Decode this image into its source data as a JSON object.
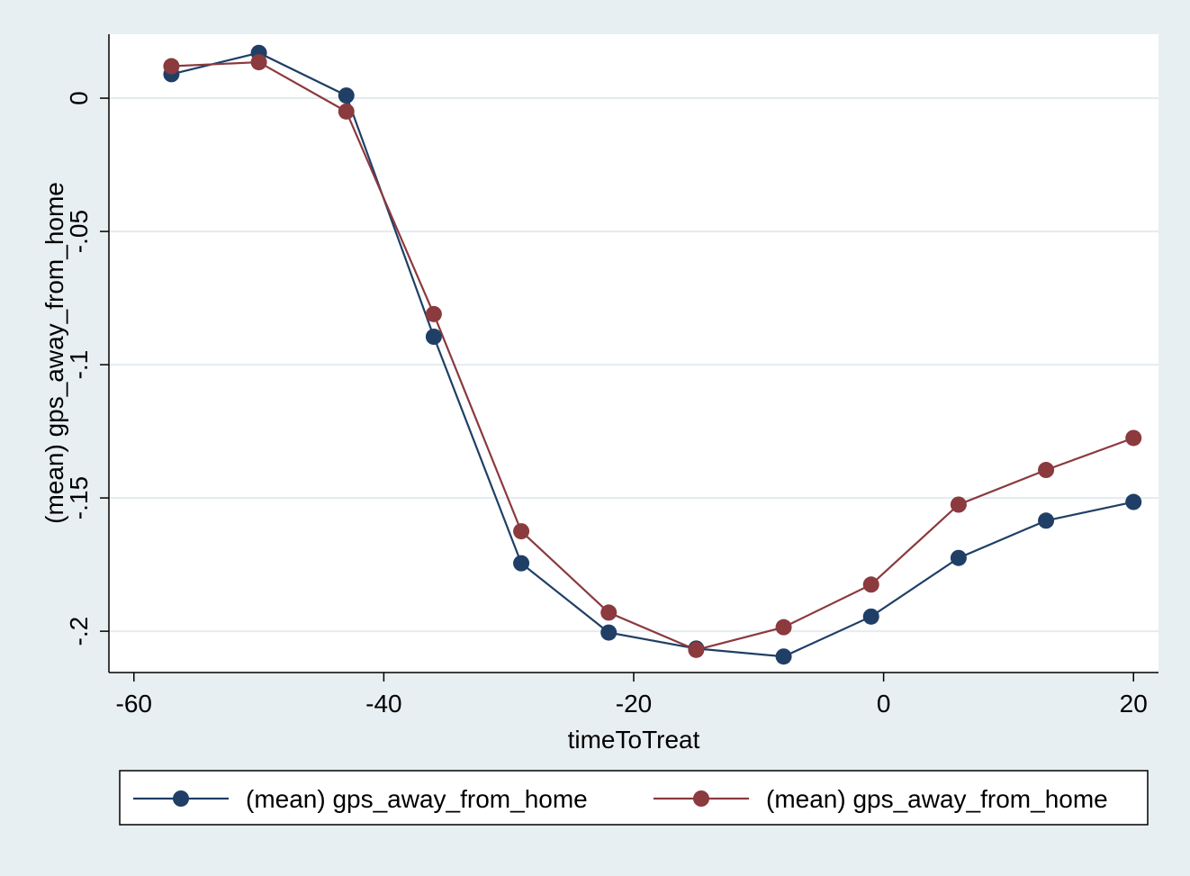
{
  "chart_data": {
    "type": "line",
    "title": "",
    "xlabel": "timeToTreat",
    "ylabel": "(mean) gps_away_from_home",
    "xlim": [
      -62,
      22
    ],
    "ylim": [
      -0.2155,
      0.024
    ],
    "x_ticks": [
      -60,
      -40,
      -20,
      0,
      20
    ],
    "x_tick_labels": [
      "-60",
      "-40",
      "-20",
      "0",
      "20"
    ],
    "y_ticks": [
      0,
      -0.05,
      -0.1,
      -0.15,
      -0.2
    ],
    "y_tick_labels": [
      "0",
      "-.05",
      "-.1",
      "-.15",
      "-.2"
    ],
    "grid": "horizontal",
    "legend_position": "bottom",
    "x": [
      -57,
      -50,
      -43,
      -36,
      -29,
      -22,
      -15,
      -8,
      -1,
      6,
      13,
      20
    ],
    "series": [
      {
        "name": "(mean) gps_away_from_home",
        "color": "#1f3f66",
        "values": [
          0.009,
          0.017,
          0.001,
          -0.0895,
          -0.1745,
          -0.2005,
          -0.2065,
          -0.2095,
          -0.1945,
          -0.1725,
          -0.1585,
          -0.1515
        ]
      },
      {
        "name": "(mean) gps_away_from_home",
        "color": "#8b3a3e",
        "values": [
          0.012,
          0.0135,
          -0.005,
          -0.081,
          -0.1625,
          -0.193,
          -0.207,
          -0.1985,
          -0.1825,
          -0.1525,
          -0.1395,
          -0.1275
        ]
      }
    ]
  }
}
